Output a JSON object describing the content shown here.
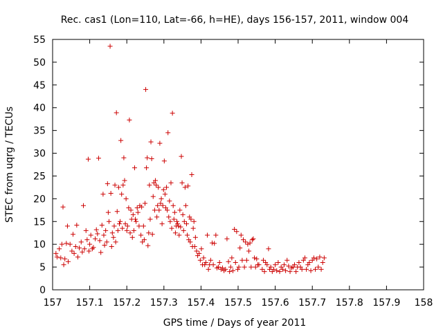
{
  "chart_data": {
    "type": "scatter",
    "title": "Rec. cas1 (Lon=110, Lat=-66, h=HE), days 156-157, 2011, window 004",
    "xlabel": "GPS time / Days of year 2011",
    "ylabel": "STEC from uqrg / TECUs",
    "xlim": [
      157,
      158
    ],
    "ylim": [
      0,
      55
    ],
    "xticks": [
      "157",
      "157.1",
      "157.2",
      "157.3",
      "157.4",
      "157.5",
      "157.6",
      "157.7",
      "157.8",
      "157.9",
      "158"
    ],
    "yticks": [
      "0",
      "5",
      "10",
      "15",
      "20",
      "25",
      "30",
      "35",
      "40",
      "45",
      "50",
      "55"
    ],
    "marker": "plus",
    "marker_color": "#cc0000",
    "grid": false,
    "points": [
      [
        157.009,
        8.0
      ],
      [
        157.012,
        7.2
      ],
      [
        157.018,
        9.0
      ],
      [
        157.022,
        7.0
      ],
      [
        157.025,
        10.0
      ],
      [
        157.028,
        18.2
      ],
      [
        157.03,
        5.5
      ],
      [
        157.033,
        6.8
      ],
      [
        157.037,
        10.2
      ],
      [
        157.04,
        14.0
      ],
      [
        157.042,
        6.2
      ],
      [
        157.047,
        10.0
      ],
      [
        157.052,
        8.5
      ],
      [
        157.055,
        12.2
      ],
      [
        157.058,
        8.0
      ],
      [
        157.062,
        9.5
      ],
      [
        157.065,
        14.2
      ],
      [
        157.068,
        7.2
      ],
      [
        157.072,
        9.2
      ],
      [
        157.077,
        10.5
      ],
      [
        157.08,
        8.3
      ],
      [
        157.083,
        18.5
      ],
      [
        157.086,
        9.0
      ],
      [
        157.09,
        13.0
      ],
      [
        157.093,
        11.0
      ],
      [
        157.096,
        28.7
      ],
      [
        157.098,
        8.5
      ],
      [
        157.1,
        10.0
      ],
      [
        157.103,
        12.0
      ],
      [
        157.107,
        9.0
      ],
      [
        157.11,
        9.3
      ],
      [
        157.115,
        11.2
      ],
      [
        157.118,
        13.2
      ],
      [
        157.121,
        12.3
      ],
      [
        157.124,
        28.9
      ],
      [
        157.127,
        10.8
      ],
      [
        157.13,
        8.2
      ],
      [
        157.133,
        14.2
      ],
      [
        157.136,
        21.0
      ],
      [
        157.138,
        12.0
      ],
      [
        157.14,
        9.8
      ],
      [
        157.143,
        13.0
      ],
      [
        157.146,
        10.5
      ],
      [
        157.148,
        23.3
      ],
      [
        157.15,
        17.0
      ],
      [
        157.152,
        15.0
      ],
      [
        157.155,
        53.5
      ],
      [
        157.157,
        21.2
      ],
      [
        157.159,
        9.5
      ],
      [
        157.161,
        12.5
      ],
      [
        157.164,
        11.5
      ],
      [
        157.166,
        14.0
      ],
      [
        157.168,
        23.0
      ],
      [
        157.17,
        10.5
      ],
      [
        157.172,
        38.9
      ],
      [
        157.174,
        17.2
      ],
      [
        157.176,
        13.0
      ],
      [
        157.178,
        22.5
      ],
      [
        157.18,
        14.5
      ],
      [
        157.182,
        15.0
      ],
      [
        157.184,
        32.8
      ],
      [
        157.186,
        21.0
      ],
      [
        157.188,
        13.5
      ],
      [
        157.19,
        23.0
      ],
      [
        157.192,
        29.0
      ],
      [
        157.194,
        24.0
      ],
      [
        157.196,
        14.5
      ],
      [
        157.198,
        20.0
      ],
      [
        157.2,
        13.0
      ],
      [
        157.202,
        14.0
      ],
      [
        157.205,
        18.0
      ],
      [
        157.207,
        37.3
      ],
      [
        157.209,
        12.5
      ],
      [
        157.211,
        17.5
      ],
      [
        157.213,
        15.5
      ],
      [
        157.215,
        11.5
      ],
      [
        157.217,
        16.5
      ],
      [
        157.219,
        13.0
      ],
      [
        157.221,
        26.8
      ],
      [
        157.223,
        15.5
      ],
      [
        157.225,
        15.0
      ],
      [
        157.228,
        18.0
      ],
      [
        157.23,
        17.0
      ],
      [
        157.233,
        14.0
      ],
      [
        157.235,
        18.5
      ],
      [
        157.238,
        12.0
      ],
      [
        157.24,
        18.2
      ],
      [
        157.242,
        10.5
      ],
      [
        157.245,
        14.0
      ],
      [
        157.247,
        11.0
      ],
      [
        157.249,
        19.0
      ],
      [
        157.251,
        44.0
      ],
      [
        157.253,
        26.8
      ],
      [
        157.255,
        29.0
      ],
      [
        157.257,
        9.7
      ],
      [
        157.259,
        12.5
      ],
      [
        157.261,
        23.0
      ],
      [
        157.263,
        15.5
      ],
      [
        157.265,
        32.5
      ],
      [
        157.267,
        28.8
      ],
      [
        157.269,
        12.2
      ],
      [
        157.271,
        20.5
      ],
      [
        157.273,
        23.5
      ],
      [
        157.275,
        17.5
      ],
      [
        157.277,
        24.0
      ],
      [
        157.279,
        23.0
      ],
      [
        157.281,
        16.0
      ],
      [
        157.283,
        18.5
      ],
      [
        157.285,
        22.5
      ],
      [
        157.287,
        17.5
      ],
      [
        157.289,
        32.2
      ],
      [
        157.291,
        19.0
      ],
      [
        157.293,
        20.0
      ],
      [
        157.295,
        14.5
      ],
      [
        157.297,
        18.5
      ],
      [
        157.299,
        22.0
      ],
      [
        157.301,
        28.3
      ],
      [
        157.303,
        21.0
      ],
      [
        157.305,
        18.0
      ],
      [
        157.307,
        22.5
      ],
      [
        157.309,
        17.5
      ],
      [
        157.311,
        34.5
      ],
      [
        157.313,
        16.0
      ],
      [
        157.315,
        19.5
      ],
      [
        157.317,
        15.0
      ],
      [
        157.319,
        23.5
      ],
      [
        157.321,
        13.5
      ],
      [
        157.323,
        38.8
      ],
      [
        157.325,
        18.5
      ],
      [
        157.327,
        15.5
      ],
      [
        157.329,
        17.0
      ],
      [
        157.331,
        12.5
      ],
      [
        157.333,
        14.0
      ],
      [
        157.335,
        15.0
      ],
      [
        157.337,
        14.5
      ],
      [
        157.339,
        14.0
      ],
      [
        157.341,
        12.0
      ],
      [
        157.343,
        17.5
      ],
      [
        157.345,
        13.8
      ],
      [
        157.347,
        29.3
      ],
      [
        157.349,
        23.5
      ],
      [
        157.351,
        16.5
      ],
      [
        157.353,
        13.0
      ],
      [
        157.355,
        15.0
      ],
      [
        157.357,
        22.5
      ],
      [
        157.359,
        18.5
      ],
      [
        157.361,
        14.5
      ],
      [
        157.363,
        12.0
      ],
      [
        157.365,
        22.8
      ],
      [
        157.367,
        11.0
      ],
      [
        157.369,
        16.0
      ],
      [
        157.371,
        10.5
      ],
      [
        157.373,
        15.5
      ],
      [
        157.375,
        25.3
      ],
      [
        157.377,
        9.5
      ],
      [
        157.379,
        13.5
      ],
      [
        157.381,
        15.0
      ],
      [
        157.383,
        9.5
      ],
      [
        157.385,
        11.5
      ],
      [
        157.388,
        8.5
      ],
      [
        157.391,
        7.5
      ],
      [
        157.395,
        8.0
      ],
      [
        157.398,
        6.5
      ],
      [
        157.401,
        9.0
      ],
      [
        157.404,
        5.5
      ],
      [
        157.407,
        7.0
      ],
      [
        157.41,
        5.5
      ],
      [
        157.413,
        6.0
      ],
      [
        157.417,
        12.0
      ],
      [
        157.42,
        4.5
      ],
      [
        157.423,
        5.5
      ],
      [
        157.426,
        6.5
      ],
      [
        157.43,
        10.3
      ],
      [
        157.433,
        5.5
      ],
      [
        157.436,
        10.2
      ],
      [
        157.44,
        12.0
      ],
      [
        157.443,
        4.8
      ],
      [
        157.447,
        5.0
      ],
      [
        157.45,
        6.0
      ],
      [
        157.454,
        4.5
      ],
      [
        157.458,
        4.8
      ],
      [
        157.462,
        4.2
      ],
      [
        157.466,
        4.5
      ],
      [
        157.47,
        11.2
      ],
      [
        157.474,
        6.2
      ],
      [
        157.477,
        4.0
      ],
      [
        157.48,
        5.0
      ],
      [
        157.483,
        7.0
      ],
      [
        157.486,
        4.2
      ],
      [
        157.49,
        13.3
      ],
      [
        157.493,
        6.0
      ],
      [
        157.496,
        12.8
      ],
      [
        157.499,
        4.5
      ],
      [
        157.502,
        5.0
      ],
      [
        157.505,
        9.2
      ],
      [
        157.508,
        12.0
      ],
      [
        157.511,
        6.5
      ],
      [
        157.514,
        11.0
      ],
      [
        157.517,
        5.0
      ],
      [
        157.52,
        10.5
      ],
      [
        157.523,
        6.5
      ],
      [
        157.526,
        10.0
      ],
      [
        157.529,
        8.5
      ],
      [
        157.532,
        10.3
      ],
      [
        157.535,
        5.0
      ],
      [
        157.538,
        11.0
      ],
      [
        157.541,
        11.2
      ],
      [
        157.544,
        7.0
      ],
      [
        157.547,
        5.0
      ],
      [
        157.55,
        6.8
      ],
      [
        157.553,
        5.5
      ],
      [
        157.556,
        5.5
      ],
      [
        157.565,
        4.5
      ],
      [
        157.568,
        6.5
      ],
      [
        157.571,
        4.0
      ],
      [
        157.574,
        6.0
      ],
      [
        157.578,
        5.5
      ],
      [
        157.582,
        9.0
      ],
      [
        157.585,
        4.5
      ],
      [
        157.588,
        5.0
      ],
      [
        157.592,
        4.0
      ],
      [
        157.596,
        4.5
      ],
      [
        157.6,
        5.5
      ],
      [
        157.604,
        4.2
      ],
      [
        157.608,
        6.0
      ],
      [
        157.612,
        4.0
      ],
      [
        157.616,
        5.0
      ],
      [
        157.62,
        4.5
      ],
      [
        157.624,
        5.5
      ],
      [
        157.628,
        4.2
      ],
      [
        157.632,
        6.5
      ],
      [
        157.636,
        5.2
      ],
      [
        157.64,
        4.0
      ],
      [
        157.644,
        4.8
      ],
      [
        157.648,
        5.0
      ],
      [
        157.652,
        5.5
      ],
      [
        157.656,
        4.0
      ],
      [
        157.66,
        5.0
      ],
      [
        157.664,
        6.0
      ],
      [
        157.668,
        5.0
      ],
      [
        157.672,
        4.5
      ],
      [
        157.676,
        6.5
      ],
      [
        157.68,
        7.0
      ],
      [
        157.684,
        4.5
      ],
      [
        157.688,
        5.5
      ],
      [
        157.692,
        6.0
      ],
      [
        157.696,
        4.2
      ],
      [
        157.7,
        6.5
      ],
      [
        157.704,
        7.0
      ],
      [
        157.708,
        4.5
      ],
      [
        157.712,
        6.8
      ],
      [
        157.716,
        5.0
      ],
      [
        157.72,
        7.2
      ],
      [
        157.724,
        4.5
      ],
      [
        157.728,
        6.0
      ],
      [
        157.732,
        7.0
      ]
    ]
  }
}
